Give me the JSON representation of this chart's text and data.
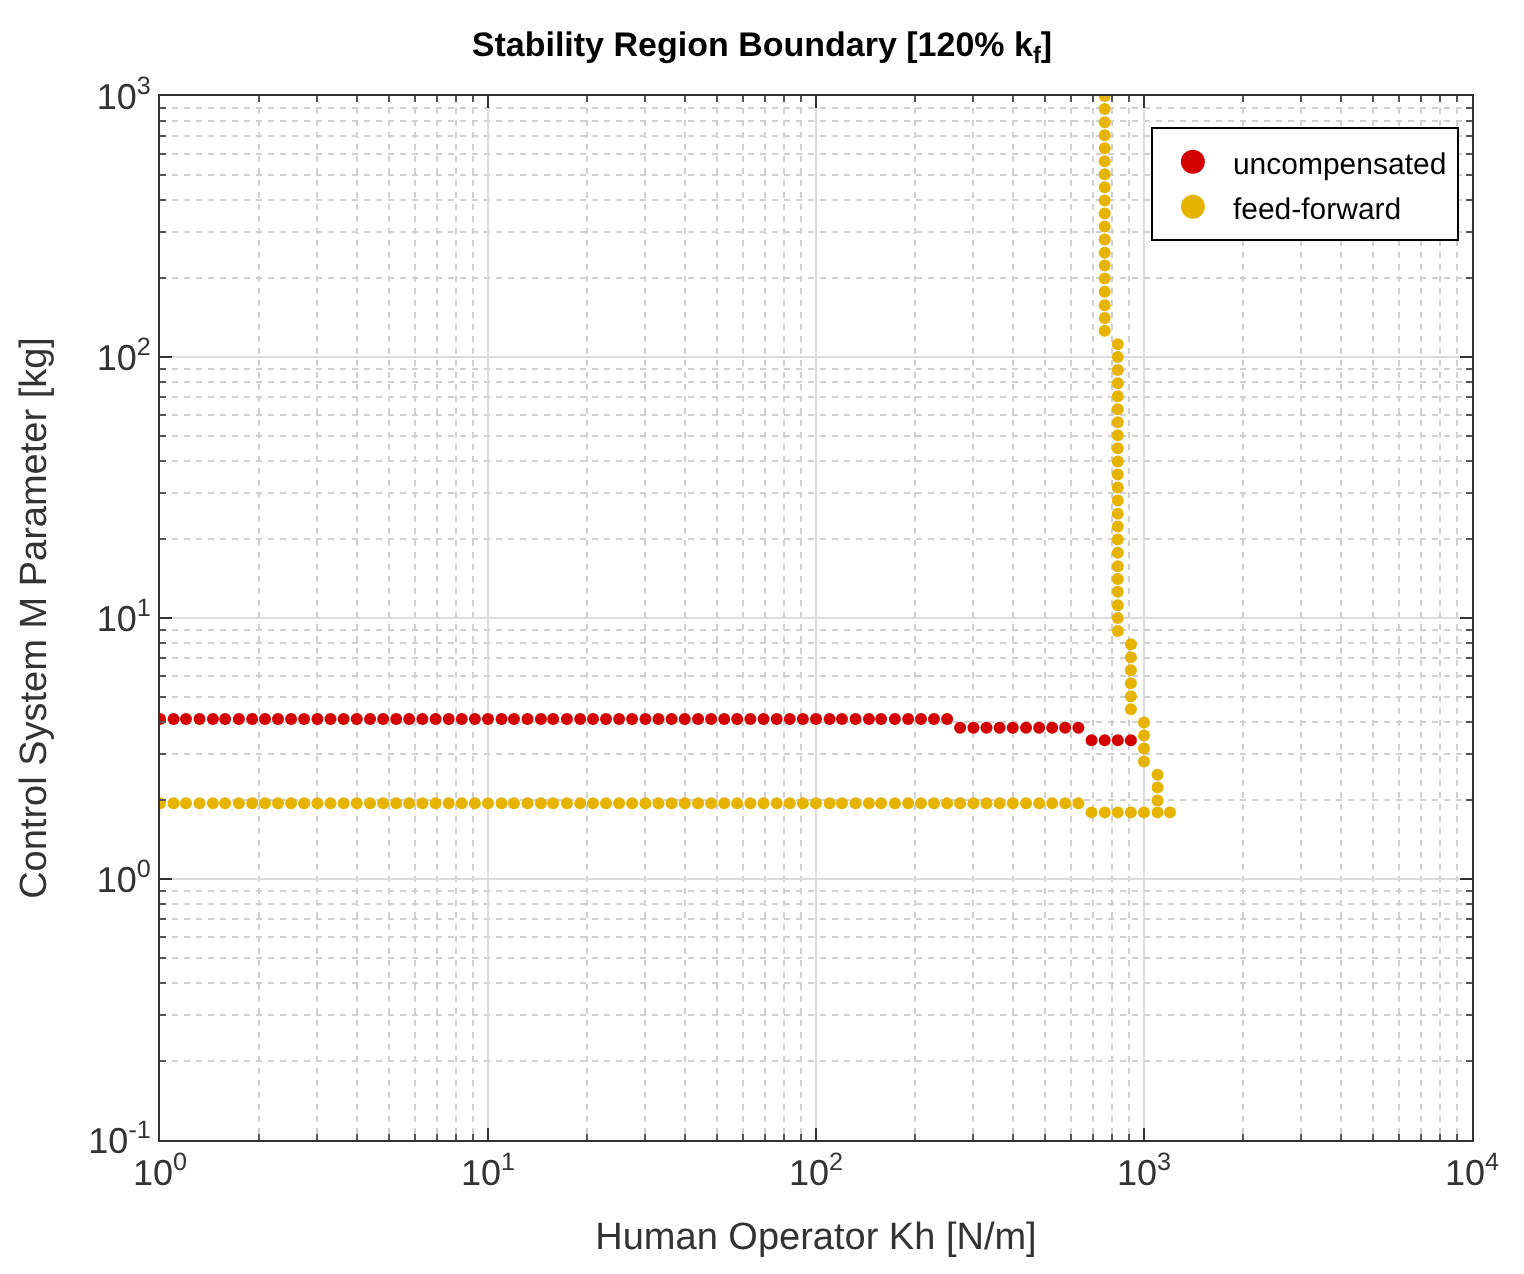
{
  "chart_data": {
    "type": "scatter",
    "title": "Stability Region Boundary [120% k$_{f}$]",
    "xlabel": "Human Operator Kh [N/m]",
    "ylabel": "Control System M Parameter [kg]",
    "log": "xy",
    "grid": true,
    "legend": "top right",
    "marker": "circle",
    "xlim": [
      1,
      10000
    ],
    "ylim": [
      0.1,
      1000
    ],
    "xticks": [
      {
        "value": 1,
        "label": "10$^{0}$"
      },
      {
        "value": 10,
        "label": "10$^{1}$"
      },
      {
        "value": 100,
        "label": "10$^{2}$"
      },
      {
        "value": 1000,
        "label": "10$^{3}$"
      },
      {
        "value": 10000,
        "label": "10$^{4}$"
      }
    ],
    "yticks": [
      {
        "value": 0.1,
        "label": "10$^{-1}$"
      },
      {
        "value": 1,
        "label": "10$^{0}$"
      },
      {
        "value": 10,
        "label": "10$^{1}$"
      },
      {
        "value": 100,
        "label": "10$^{2}$"
      },
      {
        "value": 1000,
        "label": "10$^{3}$"
      }
    ],
    "series": [
      {
        "name": "uncompensated",
        "color": "#d40000",
        "x": [
          1,
          1.1,
          1.2,
          1.32,
          1.45,
          1.58,
          1.74,
          1.91,
          2.09,
          2.29,
          2.51,
          2.75,
          3.02,
          3.31,
          3.63,
          3.98,
          4.37,
          4.79,
          5.25,
          5.75,
          6.31,
          6.92,
          7.59,
          8.32,
          9.12,
          10,
          11,
          12,
          13.2,
          14.5,
          15.8,
          17.4,
          19.1,
          20.9,
          22.9,
          25.1,
          27.5,
          30.2,
          33.1,
          36.3,
          39.8,
          43.7,
          47.9,
          52.5,
          57.5,
          63.1,
          69.2,
          75.9,
          83.2,
          91.2,
          100,
          110,
          120,
          132,
          145,
          158,
          174,
          191,
          209,
          229,
          251,
          275,
          302,
          331,
          363,
          398,
          437,
          479,
          525,
          575,
          631,
          692,
          759,
          832,
          912
        ],
        "values": [
          4.1,
          4.1,
          4.1,
          4.1,
          4.1,
          4.1,
          4.1,
          4.1,
          4.1,
          4.1,
          4.1,
          4.1,
          4.1,
          4.1,
          4.1,
          4.1,
          4.1,
          4.1,
          4.1,
          4.1,
          4.1,
          4.1,
          4.1,
          4.1,
          4.1,
          4.1,
          4.1,
          4.1,
          4.1,
          4.1,
          4.1,
          4.1,
          4.1,
          4.1,
          4.1,
          4.1,
          4.1,
          4.1,
          4.1,
          4.1,
          4.1,
          4.1,
          4.1,
          4.1,
          4.1,
          4.1,
          4.1,
          4.1,
          4.1,
          4.1,
          4.1,
          4.1,
          4.1,
          4.1,
          4.1,
          4.1,
          4.1,
          4.1,
          4.1,
          4.1,
          4.1,
          3.8,
          3.8,
          3.8,
          3.8,
          3.8,
          3.8,
          3.8,
          3.8,
          3.8,
          3.8,
          3.4,
          3.4,
          3.4,
          3.4
        ]
      },
      {
        "name": "feed-forward",
        "color": "#e6b400",
        "x": [
          1,
          1.1,
          1.2,
          1.32,
          1.45,
          1.58,
          1.74,
          1.91,
          2.09,
          2.29,
          2.51,
          2.75,
          3.02,
          3.31,
          3.63,
          3.98,
          4.37,
          4.79,
          5.25,
          5.75,
          6.31,
          6.92,
          7.59,
          8.32,
          9.12,
          10,
          11,
          12,
          13.2,
          14.5,
          15.8,
          17.4,
          19.1,
          20.9,
          22.9,
          25.1,
          27.5,
          30.2,
          33.1,
          36.3,
          39.8,
          43.7,
          47.9,
          52.5,
          57.5,
          63.1,
          69.2,
          75.9,
          83.2,
          91.2,
          100,
          110,
          120,
          132,
          145,
          158,
          174,
          191,
          209,
          229,
          251,
          275,
          302,
          331,
          363,
          398,
          437,
          479,
          525,
          575,
          631,
          692,
          759,
          832,
          912,
          1000,
          1100,
          1200,
          759,
          759,
          759,
          759,
          759,
          759,
          759,
          759,
          759,
          759,
          759,
          759,
          759,
          759,
          759,
          759,
          759,
          759,
          759,
          832,
          832,
          832,
          832,
          832,
          832,
          832,
          832,
          832,
          832,
          832,
          832,
          832,
          832,
          832,
          832,
          832,
          832,
          832,
          832,
          832,
          832,
          832,
          912,
          912,
          912,
          912,
          912,
          912,
          1000,
          1000,
          1000,
          1000,
          1100,
          1100,
          1100
        ],
        "values": [
          1.95,
          1.95,
          1.95,
          1.95,
          1.95,
          1.95,
          1.95,
          1.95,
          1.95,
          1.95,
          1.95,
          1.95,
          1.95,
          1.95,
          1.95,
          1.95,
          1.95,
          1.95,
          1.95,
          1.95,
          1.95,
          1.95,
          1.95,
          1.95,
          1.95,
          1.95,
          1.95,
          1.95,
          1.95,
          1.95,
          1.95,
          1.95,
          1.95,
          1.95,
          1.95,
          1.95,
          1.95,
          1.95,
          1.95,
          1.95,
          1.95,
          1.95,
          1.95,
          1.95,
          1.95,
          1.95,
          1.95,
          1.95,
          1.95,
          1.95,
          1.95,
          1.95,
          1.95,
          1.95,
          1.95,
          1.95,
          1.95,
          1.95,
          1.95,
          1.95,
          1.95,
          1.95,
          1.95,
          1.95,
          1.95,
          1.95,
          1.95,
          1.95,
          1.95,
          1.95,
          1.95,
          1.8,
          1.8,
          1.8,
          1.8,
          1.8,
          1.8,
          1.8,
          1000,
          891,
          794,
          708,
          631,
          562,
          501,
          447,
          398,
          355,
          316,
          282,
          251,
          224,
          200,
          178,
          158,
          141,
          126,
          112,
          100,
          89.1,
          79.4,
          70.8,
          63.1,
          56.2,
          50.1,
          44.7,
          39.8,
          35.5,
          31.6,
          28.2,
          25.1,
          22.4,
          20,
          17.8,
          15.8,
          14.1,
          12.6,
          11.2,
          10,
          8.91,
          7.94,
          7.08,
          6.31,
          5.62,
          5.01,
          4.47,
          3.98,
          3.55,
          3.16,
          2.82,
          2.51,
          2.24,
          2.0
        ]
      }
    ]
  }
}
